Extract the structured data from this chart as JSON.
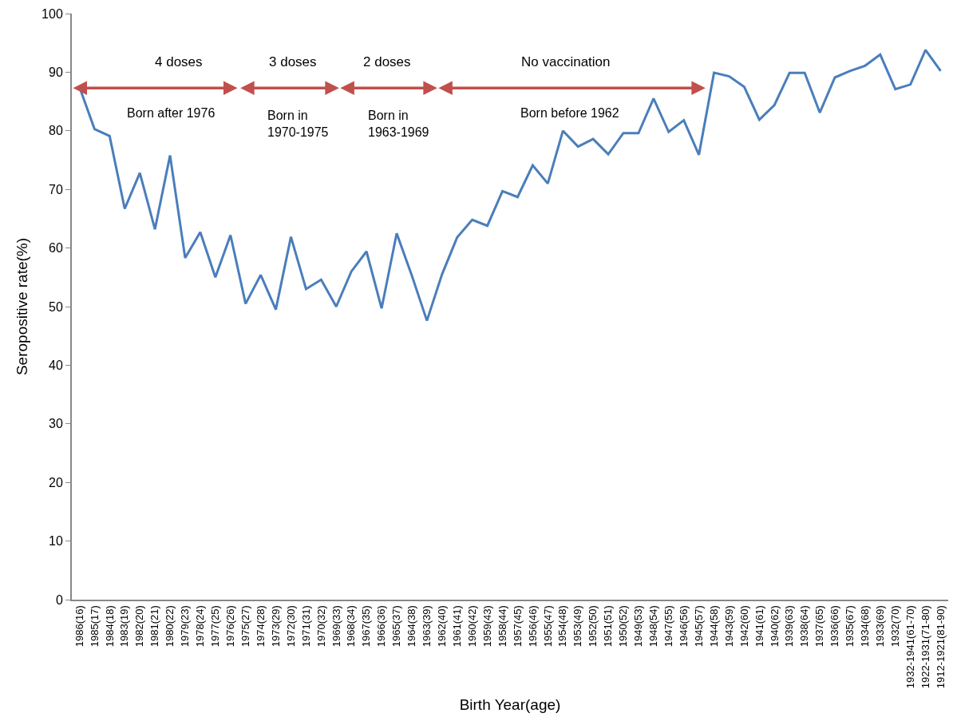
{
  "chart_data": {
    "type": "line",
    "xlabel": "Birth Year(age)",
    "ylabel": "Seropositive rate(%)",
    "categories": [
      "1986(16)",
      "1985(17)",
      "1984(18)",
      "1983(19)",
      "1982(20)",
      "1981(21)",
      "1980(22)",
      "1979(23)",
      "1978(24)",
      "1977(25)",
      "1976(26)",
      "1975(27)",
      "1974(28)",
      "1973(29)",
      "1972(30)",
      "1971(31)",
      "1970(32)",
      "1969(33)",
      "1968(34)",
      "1967(35)",
      "1966(36)",
      "1965(37)",
      "1964(38)",
      "1963(39)",
      "1962(40)",
      "1961(41)",
      "1960(42)",
      "1959(43)",
      "1958(44)",
      "1957(45)",
      "1956(46)",
      "1955(47)",
      "1954(48)",
      "1953(49)",
      "1952(50)",
      "1951(51)",
      "1950(52)",
      "1949(53)",
      "1948(54)",
      "1947(55)",
      "1946(56)",
      "1945(57)",
      "1944(58)",
      "1943(59)",
      "1942(60)",
      "1941(61)",
      "1940(62)",
      "1939(63)",
      "1938(64)",
      "1937(65)",
      "1936(66)",
      "1935(67)",
      "1934(68)",
      "1933(69)",
      "1932(70)",
      "1932-1941(61-70)",
      "1922-1931(71-80)",
      "1912-1921(81-90)"
    ],
    "series": [
      {
        "color": "#4a7ebb",
        "values": [
          87.5,
          80.3,
          79.1,
          66.7,
          72.8,
          63.2,
          75.8,
          58.3,
          62.7,
          55.0,
          62.2,
          50.5,
          55.4,
          49.5,
          61.9,
          53.0,
          54.6,
          50.0,
          56.0,
          59.4,
          49.7,
          62.5,
          55.3,
          47.6,
          55.5,
          61.8,
          64.8,
          63.8,
          69.7,
          68.7,
          74.1,
          71.0,
          80.0,
          77.3,
          78.6,
          76.0,
          79.6,
          79.6,
          85.5,
          79.8,
          81.8,
          75.9,
          89.9,
          89.3,
          87.5,
          81.9,
          84.4,
          89.9,
          89.9,
          83.1,
          89.1,
          90.2,
          91.1,
          93.0,
          87.1,
          87.9,
          93.8,
          90.2
        ]
      }
    ],
    "ylim": [
      0,
      100
    ],
    "yticks": [
      0,
      10,
      20,
      30,
      40,
      50,
      60,
      70,
      80,
      90,
      100
    ],
    "grid": false,
    "marker": "none",
    "line_style": "solid",
    "annotations": [
      "4 doses",
      "Born after 1976",
      "3 doses",
      "Born in\n1970-1975",
      "2 doses",
      "Born in\n1963-1969",
      "No vaccination",
      "Born before 1962"
    ]
  }
}
